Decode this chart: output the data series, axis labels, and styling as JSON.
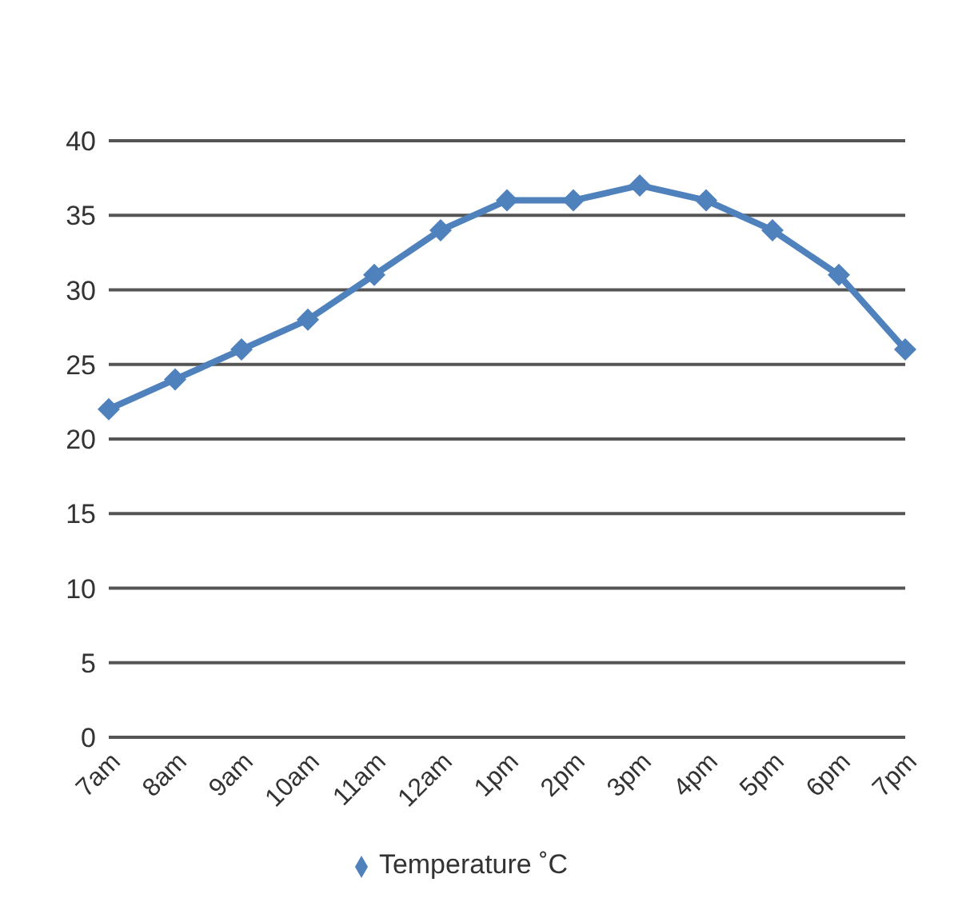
{
  "chart_data": {
    "type": "line",
    "categories": [
      "7am",
      "8am",
      "9am",
      "10am",
      "11am",
      "12am",
      "1pm",
      "2pm",
      "3pm",
      "4pm",
      "5pm",
      "6pm",
      "7pm"
    ],
    "series": [
      {
        "name": "Temperature ˚C",
        "color": "#4f81bd",
        "values": [
          22,
          24,
          26,
          28,
          31,
          34,
          36,
          36,
          37,
          36,
          34,
          31,
          26
        ]
      }
    ],
    "ylim": [
      0,
      40
    ],
    "yticks": [
      0,
      5,
      10,
      15,
      20,
      25,
      30,
      35,
      40
    ],
    "grid": "y",
    "legend": "bottom",
    "marker": "diamond",
    "line_style": "solid"
  }
}
